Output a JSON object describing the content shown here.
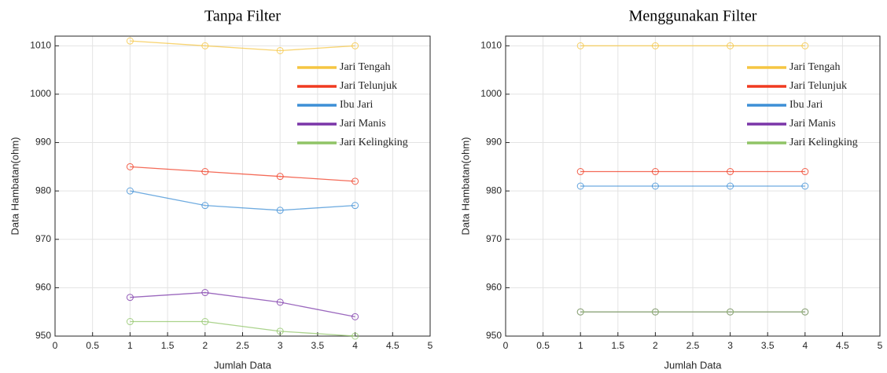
{
  "chart_data": [
    {
      "type": "line",
      "title": "Tanpa Filter",
      "xlabel": "Jumlah Data",
      "ylabel": "Data Hambatan(ohm)",
      "x": [
        1,
        2,
        3,
        4
      ],
      "series": [
        {
          "name": "Jari Tengah",
          "color": "#f5c542",
          "values": [
            1011,
            1010,
            1009,
            1010
          ]
        },
        {
          "name": "Jari Telunjuk",
          "color": "#f03a20",
          "values": [
            985,
            984,
            983,
            982
          ]
        },
        {
          "name": "Ibu Jari",
          "color": "#3d8fd6",
          "values": [
            980,
            977,
            976,
            977
          ]
        },
        {
          "name": "Jari Manis",
          "color": "#7a35a8",
          "values": [
            958,
            959,
            957,
            954
          ]
        },
        {
          "name": "Jari Kelingking",
          "color": "#8fc466",
          "values": [
            953,
            953,
            951,
            950
          ]
        }
      ],
      "xlim": [
        0,
        5
      ],
      "xticks": [
        0,
        0.5,
        1,
        1.5,
        2,
        2.5,
        3,
        3.5,
        4,
        4.5,
        5
      ],
      "ylim": [
        950,
        1012
      ],
      "yticks": [
        950,
        960,
        970,
        980,
        990,
        1000,
        1010
      ],
      "grid": true,
      "legend": "upper right"
    },
    {
      "type": "line",
      "title": "Menggunakan Filter",
      "xlabel": "Jumlah Data",
      "ylabel": "Data Hambatan(ohm)",
      "x": [
        1,
        2,
        3,
        4
      ],
      "series": [
        {
          "name": "Jari Tengah",
          "color": "#f5c542",
          "values": [
            1010,
            1010,
            1010,
            1010
          ]
        },
        {
          "name": "Jari Telunjuk",
          "color": "#f03a20",
          "values": [
            984,
            984,
            984,
            984
          ]
        },
        {
          "name": "Ibu Jari",
          "color": "#3d8fd6",
          "values": [
            981,
            981,
            981,
            981
          ]
        },
        {
          "name": "Jari Manis",
          "color": "#7a35a8",
          "values": [
            955,
            955,
            955,
            955
          ]
        },
        {
          "name": "Jari Kelingking",
          "color": "#8fc466",
          "values": [
            955,
            955,
            955,
            955
          ]
        }
      ],
      "xlim": [
        0,
        5
      ],
      "xticks": [
        0,
        0.5,
        1,
        1.5,
        2,
        2.5,
        3,
        3.5,
        4,
        4.5,
        5
      ],
      "ylim": [
        950,
        1012
      ],
      "yticks": [
        950,
        960,
        970,
        980,
        990,
        1000,
        1010
      ],
      "grid": true,
      "legend": "upper right"
    }
  ]
}
